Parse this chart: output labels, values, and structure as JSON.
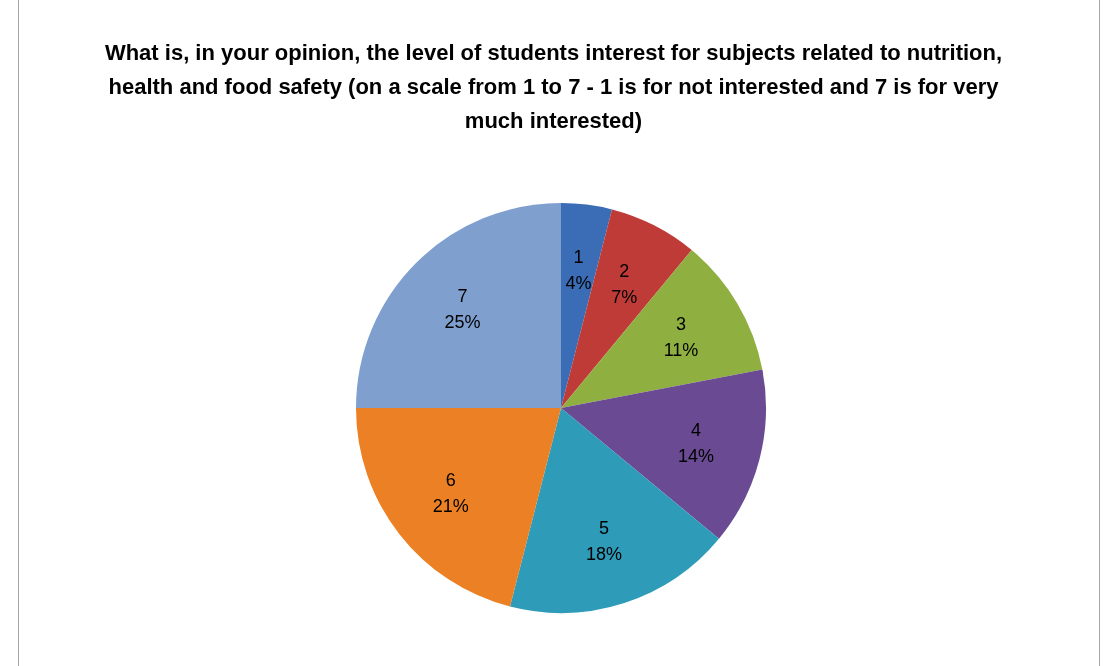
{
  "chart_data": {
    "type": "pie",
    "title": "What is, in your opinion, the level of students interest for subjects related to nutrition, health and food safety (on a scale from 1 to 7 - 1 is for not interested and 7 is for very much interested)",
    "categories": [
      "1",
      "2",
      "3",
      "4",
      "5",
      "6",
      "7"
    ],
    "values": [
      4,
      7,
      11,
      14,
      18,
      21,
      25
    ],
    "value_labels": [
      "4%",
      "7%",
      "11%",
      "14%",
      "18%",
      "21%",
      "25%"
    ],
    "colors": [
      "#3a6db5",
      "#bf3b38",
      "#8fb040",
      "#6a4a93",
      "#2e9bb8",
      "#ec8024",
      "#7f9fcf"
    ],
    "legend": false
  }
}
